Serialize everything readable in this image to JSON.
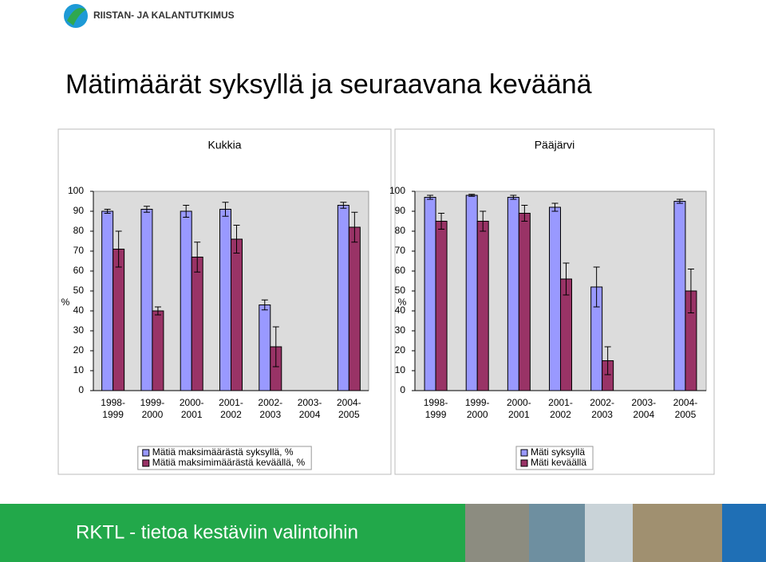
{
  "logo_text": "RIISTAN- JA KALANTUTKIMUS",
  "slide_title": "Mätimäärät syksyllä ja seuraavana keväänä",
  "footer_text": "RKTL - tietoa kestäviin valintoihin",
  "chart_data": [
    {
      "type": "bar",
      "title": "Kukkia",
      "y_label": "%",
      "categories": [
        "1998-1999",
        "1999-2000",
        "2000-2001",
        "2001-2002",
        "2002-2003",
        "2003-2004",
        "2004-2005"
      ],
      "series": [
        {
          "name": "Mätiä maksimäärästä syksyllä, %",
          "color": "#9999ff",
          "values": [
            90,
            91,
            90,
            91,
            43,
            0,
            93
          ],
          "errors": [
            1,
            1.5,
            3,
            3.5,
            2.5,
            0,
            1.5
          ]
        },
        {
          "name": "Mätiä maksimimäärästä keväällä, %",
          "color": "#993366",
          "values": [
            71,
            40,
            67,
            76,
            22,
            0,
            82
          ],
          "errors": [
            9,
            2,
            7.5,
            7,
            10,
            0,
            7.5
          ]
        }
      ],
      "ylim": [
        0,
        100
      ],
      "yticks": [
        0,
        10,
        20,
        30,
        40,
        50,
        60,
        70,
        80,
        90,
        100
      ],
      "grid": false,
      "legend": "bottom"
    },
    {
      "type": "bar",
      "title": "Pääjärvi",
      "y_label": "%",
      "categories": [
        "1998-1999",
        "1999-2000",
        "2000-2001",
        "2001-2002",
        "2002-2003",
        "2003-2004",
        "2004-2005"
      ],
      "series": [
        {
          "name": "Mäti syksyllä",
          "color": "#9999ff",
          "values": [
            97,
            98,
            97,
            92,
            52,
            0,
            95
          ],
          "errors": [
            1,
            0.5,
            1,
            2,
            10,
            0,
            1
          ]
        },
        {
          "name": "Mäti keväällä",
          "color": "#993366",
          "values": [
            85,
            85,
            89,
            56,
            15,
            0,
            50
          ],
          "errors": [
            4,
            5,
            4,
            8,
            7,
            0,
            11
          ]
        }
      ],
      "ylim": [
        0,
        100
      ],
      "yticks": [
        0,
        10,
        20,
        30,
        40,
        50,
        60,
        70,
        80,
        90,
        100
      ],
      "grid": false,
      "legend": "bottom"
    }
  ]
}
